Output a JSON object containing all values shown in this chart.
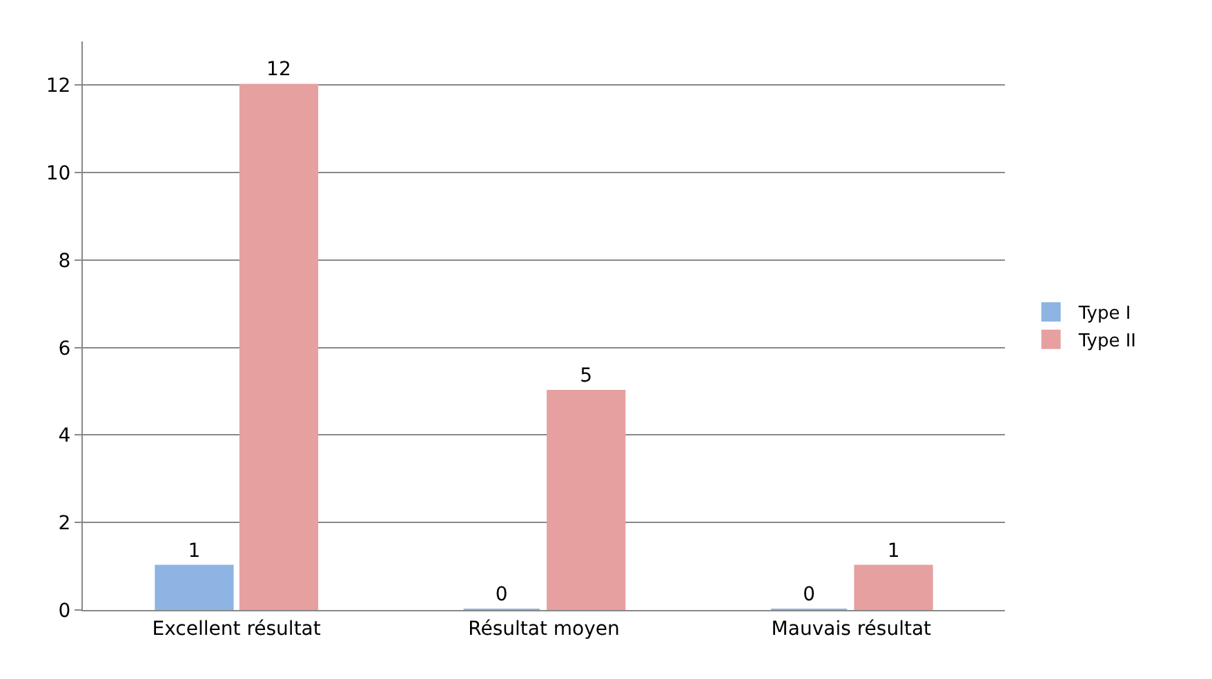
{
  "chart_data": {
    "type": "bar",
    "categories": [
      "Excellent résultat",
      "Résultat moyen",
      "Mauvais résultat"
    ],
    "series": [
      {
        "name": "Type I",
        "color": "#8db4e2",
        "values": [
          1,
          0,
          0
        ]
      },
      {
        "name": "Type II",
        "color": "#e6a0a0",
        "values": [
          12,
          5,
          1
        ]
      }
    ],
    "ylim": [
      0,
      13
    ],
    "yticks": [
      0,
      2,
      4,
      6,
      8,
      10,
      12
    ],
    "grid": "y",
    "legend": "right",
    "data_labels": true
  }
}
